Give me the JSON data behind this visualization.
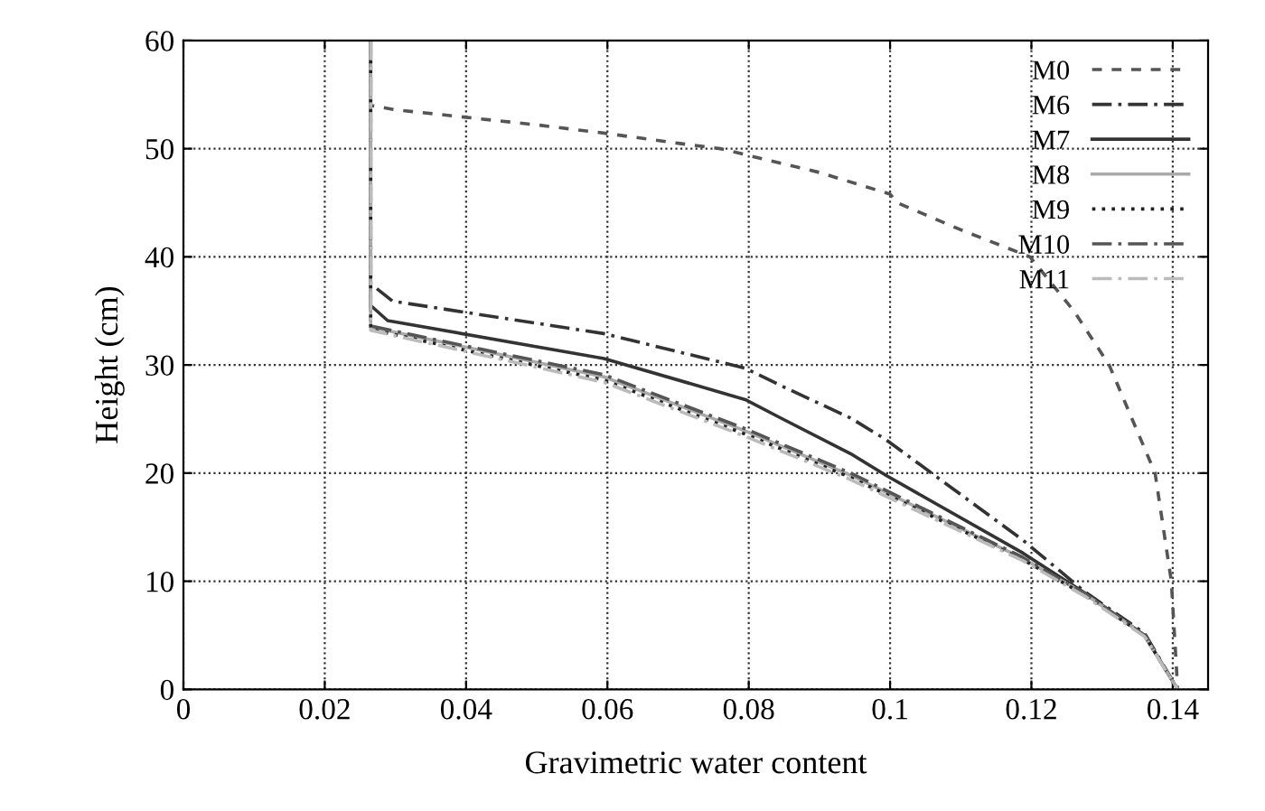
{
  "chart_data": {
    "type": "line",
    "xlabel": "Gravimetric water content",
    "ylabel": "Height (cm)",
    "xlim": [
      0,
      0.145
    ],
    "ylim": [
      0,
      60
    ],
    "xticks": [
      0,
      0.02,
      0.04,
      0.06,
      0.08,
      0.1,
      0.12,
      0.14
    ],
    "yticks": [
      0,
      10,
      20,
      30,
      40,
      50,
      60
    ],
    "grid": true,
    "legend": "top right",
    "series": [
      {
        "name": "M0",
        "color": "#555555",
        "line_style": "dashed",
        "x": [
          0.0265,
          0.0265,
          0.03,
          0.04,
          0.05,
          0.06,
          0.07,
          0.076,
          0.09,
          0.1,
          0.101,
          0.11,
          0.1198,
          0.126,
          0.131,
          0.1375,
          0.1398,
          0.1407
        ],
        "values": [
          60,
          54,
          53.6,
          52.9,
          52.2,
          51.4,
          50.5,
          50,
          47.8,
          45.8,
          45,
          42.5,
          40,
          35,
          30,
          20,
          10,
          0
        ]
      },
      {
        "name": "M6",
        "color": "#333333",
        "line_style": "dashdot",
        "x": [
          0.0265,
          0.0265,
          0.0296,
          0.0595,
          0.0795,
          0.0845,
          0.0944,
          0.0994,
          0.1188,
          0.1276,
          0.136,
          0.1407
        ],
        "values": [
          60,
          37.5,
          35.9,
          32.9,
          29.7,
          28.1,
          25.1,
          23.1,
          13.8,
          9,
          5.2,
          0
        ]
      },
      {
        "name": "M7",
        "color": "#333333",
        "line_style": "solid",
        "x": [
          0.0265,
          0.0265,
          0.0289,
          0.0595,
          0.0795,
          0.0845,
          0.0944,
          0.0994,
          0.1188,
          0.1276,
          0.136,
          0.1407
        ],
        "values": [
          60,
          35.5,
          34.1,
          30.6,
          26.8,
          25.1,
          21.8,
          19.8,
          12.6,
          8.9,
          5,
          0
        ]
      },
      {
        "name": "M8",
        "color": "#aaaaaa",
        "line_style": "solid",
        "x": [
          0.0265,
          0.0265,
          0.0396,
          0.0595,
          0.0795,
          0.0944,
          0.1188,
          0.1276,
          0.136,
          0.1407
        ],
        "values": [
          60,
          33.5,
          31.7,
          28.9,
          23.9,
          19.8,
          12.1,
          8.8,
          5,
          0
        ]
      },
      {
        "name": "M9",
        "color": "#222222",
        "line_style": "dotted",
        "x": [
          0.0265,
          0.0265,
          0.0396,
          0.0595,
          0.0795,
          0.0944,
          0.1188,
          0.1276,
          0.136,
          0.1407
        ],
        "values": [
          60,
          33.3,
          31.4,
          28.6,
          23.6,
          19.6,
          12,
          8.7,
          5,
          0
        ]
      },
      {
        "name": "M10",
        "color": "#555555",
        "line_style": "dashdot",
        "x": [
          0.0265,
          0.0265,
          0.0396,
          0.0595,
          0.0795,
          0.0944,
          0.1188,
          0.1276,
          0.136,
          0.1407
        ],
        "values": [
          60,
          33.6,
          31.8,
          29.1,
          24.1,
          20,
          12.2,
          8.8,
          5,
          0
        ]
      },
      {
        "name": "M11",
        "color": "#bbbbbb",
        "line_style": "dashdot",
        "x": [
          0.0265,
          0.0265,
          0.0396,
          0.0595,
          0.0795,
          0.0944,
          0.1188,
          0.1276,
          0.136,
          0.1407
        ],
        "values": [
          60,
          33.2,
          31.3,
          28.4,
          23.4,
          19.4,
          11.9,
          8.6,
          4.9,
          0
        ]
      }
    ]
  }
}
